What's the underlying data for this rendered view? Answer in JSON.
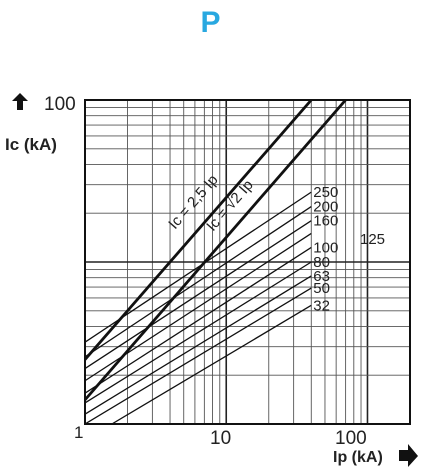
{
  "header": {
    "title": "P",
    "accent_color": "#29a8e0"
  },
  "chart_data": {
    "type": "line",
    "title": "P",
    "xlabel": "Ip (kA)",
    "ylabel": "Ic (kA)",
    "x_scale": "log",
    "y_scale": "log",
    "xlim": [
      1,
      200
    ],
    "ylim": [
      1,
      100
    ],
    "x_tick_labels": [
      "1",
      "10",
      "100"
    ],
    "y_tick_labels": [
      "100"
    ],
    "grid": true,
    "boundary_lines": [
      {
        "name": "Ic = 2,5 Ip",
        "x": [
          1,
          40
        ],
        "y": [
          2.5,
          100
        ]
      },
      {
        "name": "Ic = √2 Ip",
        "x": [
          1,
          70
        ],
        "y": [
          1.41,
          100
        ]
      }
    ],
    "series": [
      {
        "name": "250",
        "x": [
          1,
          40
        ],
        "y": [
          3.2,
          27
        ]
      },
      {
        "name": "200",
        "x": [
          1,
          40
        ],
        "y": [
          2.6,
          22
        ]
      },
      {
        "name": "160",
        "x": [
          1,
          40
        ],
        "y": [
          2.2,
          18
        ]
      },
      {
        "name": "125",
        "x": [
          1,
          40
        ],
        "y": [
          1.85,
          15
        ]
      },
      {
        "name": "100",
        "x": [
          1,
          40
        ],
        "y": [
          1.55,
          12.3
        ]
      },
      {
        "name": "80",
        "x": [
          1,
          40
        ],
        "y": [
          1.35,
          10
        ]
      },
      {
        "name": "63",
        "x": [
          1,
          40
        ],
        "y": [
          1.15,
          8.2
        ]
      },
      {
        "name": "50",
        "x": [
          1,
          40
        ],
        "y": [
          1.0,
          6.9
        ]
      },
      {
        "name": "32",
        "x": [
          1.55,
          40
        ],
        "y": [
          1.0,
          5.4
        ]
      }
    ]
  }
}
